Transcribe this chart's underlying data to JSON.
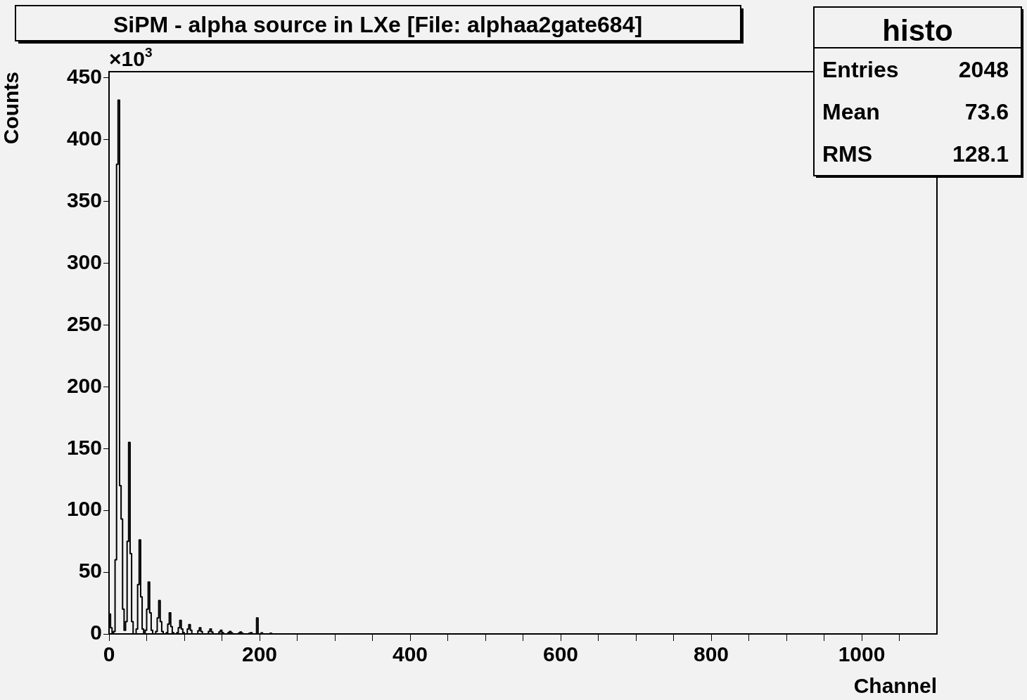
{
  "chart_data": {
    "type": "histogram",
    "title": "SiPM - alpha source in LXe [File: alphaa2gate684]",
    "xlabel": "Channel",
    "ylabel": "Counts",
    "annotations": [
      "×10$^{3}$",
      "histo",
      "Entries 2048",
      "Mean 73.6",
      "RMS 128.1"
    ],
    "color": "#000000",
    "bins": [
      0,
      2,
      4,
      6,
      8,
      10,
      12,
      14,
      16,
      18,
      20,
      22,
      24,
      26,
      28,
      30,
      32,
      34,
      36,
      38,
      40,
      42,
      44,
      46,
      48,
      50,
      52,
      54,
      56,
      58,
      60,
      62,
      64,
      66,
      68,
      70,
      72,
      74,
      76,
      78,
      80,
      82,
      84,
      86,
      88,
      90,
      92,
      94,
      96,
      98,
      100,
      102,
      104,
      106,
      108,
      110,
      112,
      114,
      116,
      118,
      120,
      122,
      124,
      126,
      128,
      130,
      132,
      134,
      136,
      138,
      140,
      142,
      144,
      146,
      148,
      150,
      152,
      154,
      156,
      158,
      160,
      162,
      164,
      166,
      168,
      170,
      172,
      174,
      176,
      178,
      180,
      182,
      184,
      186,
      188,
      190,
      192,
      194,
      196,
      198,
      200,
      202,
      204,
      206,
      208,
      210,
      212,
      214,
      216,
      218,
      220,
      222,
      224,
      226,
      228,
      230,
      1100
    ],
    "values": [
      5,
      16,
      5,
      1,
      2,
      60,
      380,
      432,
      120,
      93,
      20,
      3,
      10,
      75,
      155,
      65,
      10,
      0,
      0,
      4,
      40,
      76,
      30,
      4,
      0,
      3,
      20,
      42,
      17,
      3,
      0,
      0,
      2,
      13,
      27,
      10,
      2,
      0,
      0,
      1,
      8,
      17,
      6,
      1,
      0,
      0,
      1,
      5,
      11,
      4,
      1,
      0,
      0,
      4,
      7.5,
      3,
      0,
      0,
      0,
      0,
      2.5,
      5,
      2,
      0,
      0,
      0,
      0,
      2,
      4,
      1.5,
      0,
      0,
      0,
      0,
      1.5,
      3,
      1,
      0,
      0,
      0,
      1,
      2,
      0.8,
      0,
      0,
      0,
      0,
      0.7,
      1.5,
      0.5,
      0,
      0,
      0,
      0,
      0.5,
      1,
      0,
      0,
      0,
      13,
      0,
      0,
      0.8,
      0,
      0,
      0,
      0,
      0,
      0.5,
      0,
      0,
      0,
      0,
      0,
      0,
      0
    ],
    "xlim": [
      0,
      1100
    ],
    "xticks": [
      0,
      {
        "value": 50,
        "label": null
      },
      {
        "value": 100,
        "label": null
      },
      {
        "value": 150,
        "label": null
      },
      200,
      {
        "value": 250,
        "label": null
      },
      {
        "value": 300,
        "label": null
      },
      {
        "value": 350,
        "label": null
      },
      400,
      {
        "value": 450,
        "label": null
      },
      {
        "value": 500,
        "label": null
      },
      {
        "value": 550,
        "label": null
      },
      600,
      {
        "value": 650,
        "label": null
      },
      {
        "value": 700,
        "label": null
      },
      {
        "value": 750,
        "label": null
      },
      800,
      {
        "value": 850,
        "label": null
      },
      {
        "value": 900,
        "label": null
      },
      {
        "value": 950,
        "label": null
      },
      1000,
      {
        "value": 1050,
        "label": null
      }
    ],
    "ylim": [
      0,
      455
    ],
    "yticks": [
      0,
      50,
      100,
      150,
      200,
      250,
      300,
      350,
      400,
      450
    ]
  }
}
